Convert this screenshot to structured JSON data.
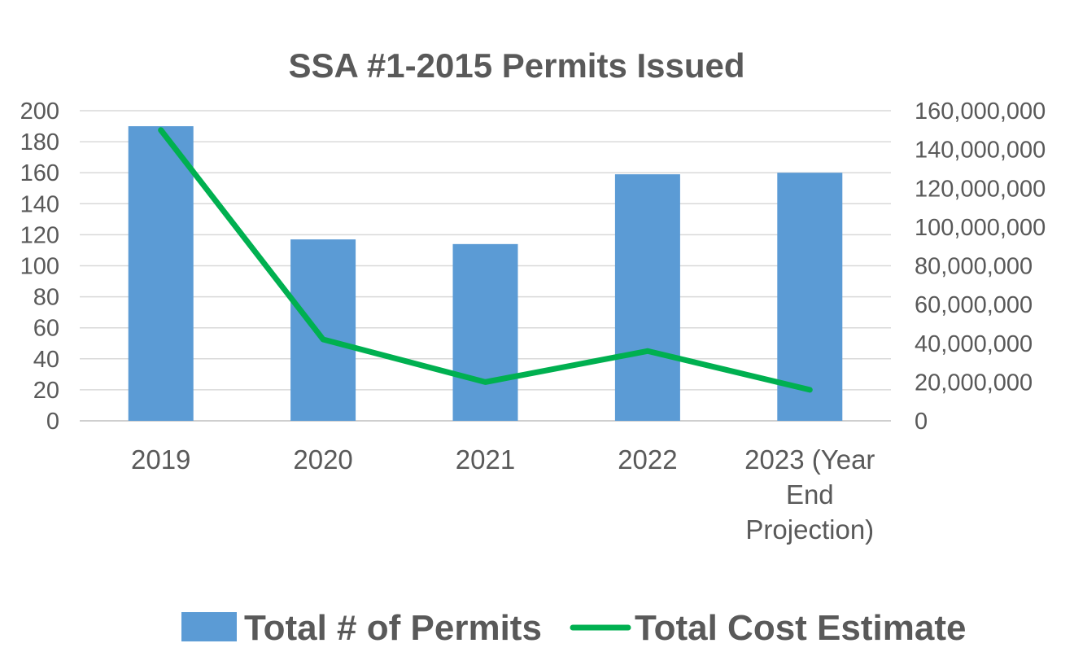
{
  "chart_data": {
    "type": "bar",
    "title": "SSA #1-2015 Permits Issued",
    "categories": [
      [
        "2019"
      ],
      [
        "2020"
      ],
      [
        "2021"
      ],
      [
        "2022"
      ],
      [
        "2023 (Year",
        "End",
        "Projection)"
      ]
    ],
    "series": [
      {
        "name": "Total # of Permits",
        "type": "bar",
        "axis": "left",
        "color": "#5B9BD5",
        "values": [
          190,
          117,
          114,
          159,
          160
        ]
      },
      {
        "name": "Total Cost Estimate",
        "type": "line",
        "axis": "right",
        "color": "#00B050",
        "values": [
          150000000,
          42000000,
          20000000,
          36000000,
          16000000
        ]
      }
    ],
    "y_left": {
      "min": 0,
      "max": 200,
      "ticks": [
        "0",
        "20",
        "40",
        "60",
        "80",
        "100",
        "120",
        "140",
        "160",
        "180",
        "200"
      ]
    },
    "y_right": {
      "min": 0,
      "max": 160000000,
      "ticks": [
        "0",
        "20,000,000",
        "40,000,000",
        "60,000,000",
        "80,000,000",
        "100,000,000",
        "120,000,000",
        "140,000,000",
        "160,000,000"
      ]
    },
    "grid": true,
    "legend_position": "bottom"
  }
}
